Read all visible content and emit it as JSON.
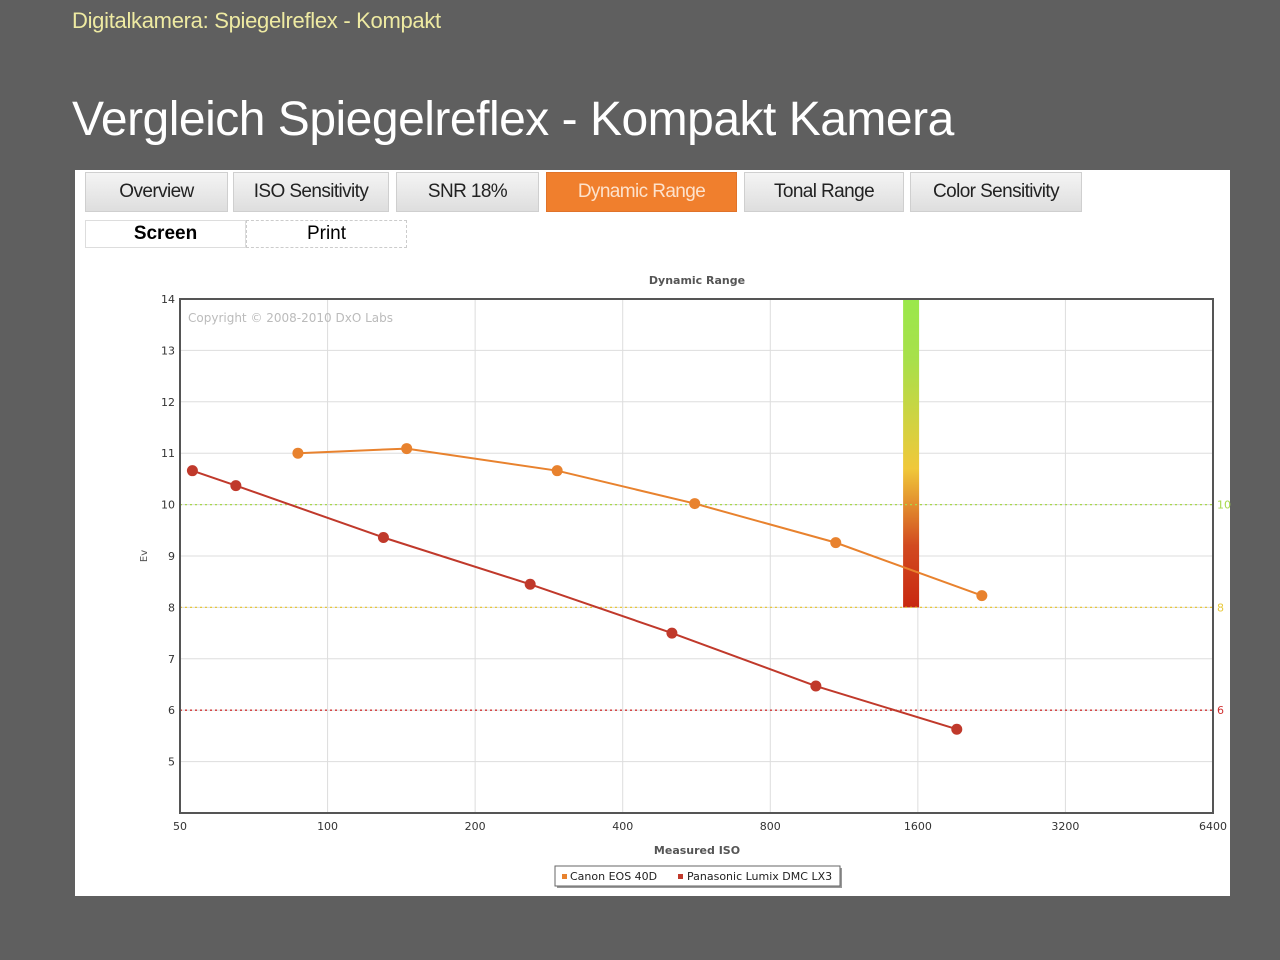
{
  "header": {
    "subtitle": "Digitalkamera: Spiegelreflex - Kompakt",
    "title": "Vergleich Spiegelreflex - Kompakt Kamera"
  },
  "tabs": [
    {
      "label": "Overview"
    },
    {
      "label": "ISO Sensitivity"
    },
    {
      "label": "SNR 18%"
    },
    {
      "label": "Dynamic Range"
    },
    {
      "label": "Tonal Range"
    },
    {
      "label": "Color Sensitivity"
    }
  ],
  "subtabs": [
    {
      "label": "Screen"
    },
    {
      "label": "Print"
    }
  ],
  "colors": {
    "accent": "#f07f2d",
    "canon": "#e8822e",
    "panasonic": "#c0392b"
  },
  "chart_data": {
    "type": "line",
    "title": "Dynamic Range",
    "xlabel": "Measured ISO",
    "ylabel": "Ev",
    "xscale": "log2",
    "xlim": [
      50,
      6400
    ],
    "ylim": [
      4,
      14
    ],
    "xticks": [
      "50",
      "100",
      "200",
      "400",
      "800",
      "1600",
      "3200",
      "6400"
    ],
    "yticks": [
      "5",
      "6",
      "7",
      "8",
      "9",
      "10",
      "11",
      "12",
      "13",
      "14"
    ],
    "copyright": "Copyright © 2008-2010 DxO Labs",
    "reference_lines": [
      {
        "value": 10,
        "label": "10",
        "color": "#a8d84a"
      },
      {
        "value": 8,
        "label": "8",
        "color": "#e8c83a"
      },
      {
        "value": 6,
        "label": "6",
        "color": "#d03030"
      }
    ],
    "gradient_bar": {
      "iso": 1550,
      "from": 8,
      "to": 14
    },
    "legend": "bottom-center",
    "series": [
      {
        "name": "Canon EOS 40D",
        "color": "#e8822e",
        "points": [
          [
            87,
            11.0
          ],
          [
            145,
            11.09
          ],
          [
            294,
            10.66
          ],
          [
            561,
            10.02
          ],
          [
            1088,
            9.26
          ],
          [
            2161,
            8.23
          ]
        ]
      },
      {
        "name": "Panasonic Lumix DMC LX3",
        "color": "#c0392b",
        "points": [
          [
            53,
            10.66
          ],
          [
            65,
            10.37
          ],
          [
            130,
            9.36
          ],
          [
            259,
            8.45
          ],
          [
            504,
            7.5
          ],
          [
            991,
            6.47
          ],
          [
            1921,
            5.63
          ]
        ]
      }
    ]
  }
}
